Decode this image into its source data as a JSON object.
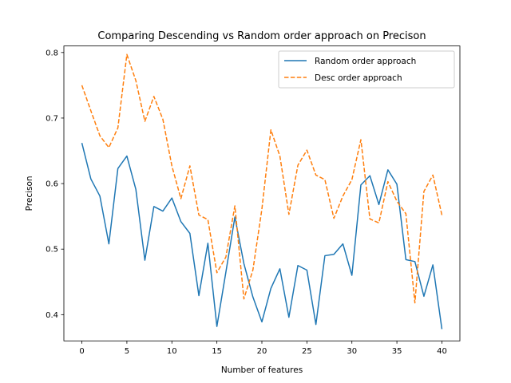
{
  "chart_data": {
    "type": "line",
    "title": "Comparing Descending vs Random order approach on Precison",
    "xlabel": "Number of features",
    "ylabel": "Precison",
    "xlim": [
      -2,
      42
    ],
    "ylim": [
      0.36,
      0.81
    ],
    "xticks": [
      0,
      5,
      10,
      15,
      20,
      25,
      30,
      35,
      40
    ],
    "yticks": [
      0.4,
      0.5,
      0.6,
      0.7,
      0.8
    ],
    "grid": false,
    "legend_position": "top-right",
    "x": [
      0,
      1,
      2,
      3,
      4,
      5,
      6,
      7,
      8,
      9,
      10,
      11,
      12,
      13,
      14,
      15,
      16,
      17,
      18,
      19,
      20,
      21,
      22,
      23,
      24,
      25,
      26,
      27,
      28,
      29,
      30,
      31,
      32,
      33,
      34,
      35,
      36,
      37,
      38,
      39,
      40
    ],
    "series": [
      {
        "name": "Random order approach",
        "color": "#1f77b4",
        "style": "solid",
        "values": [
          0.662,
          0.607,
          0.581,
          0.508,
          0.623,
          0.642,
          0.591,
          0.483,
          0.565,
          0.558,
          0.578,
          0.542,
          0.524,
          0.429,
          0.509,
          0.382,
          0.465,
          0.549,
          0.478,
          0.427,
          0.389,
          0.44,
          0.47,
          0.396,
          0.475,
          0.468,
          0.385,
          0.49,
          0.492,
          0.508,
          0.46,
          0.598,
          0.612,
          0.568,
          0.621,
          0.599,
          0.484,
          0.481,
          0.428,
          0.476,
          0.378
        ]
      },
      {
        "name": "Desc order approach",
        "color": "#ff7f0e",
        "style": "dashed",
        "values": [
          0.75,
          0.711,
          0.673,
          0.655,
          0.685,
          0.797,
          0.757,
          0.695,
          0.733,
          0.698,
          0.627,
          0.577,
          0.627,
          0.552,
          0.545,
          0.464,
          0.488,
          0.566,
          0.424,
          0.468,
          0.561,
          0.682,
          0.642,
          0.553,
          0.628,
          0.651,
          0.613,
          0.606,
          0.547,
          0.581,
          0.606,
          0.667,
          0.546,
          0.54,
          0.603,
          0.573,
          0.554,
          0.418,
          0.588,
          0.613,
          0.552
        ]
      }
    ]
  }
}
